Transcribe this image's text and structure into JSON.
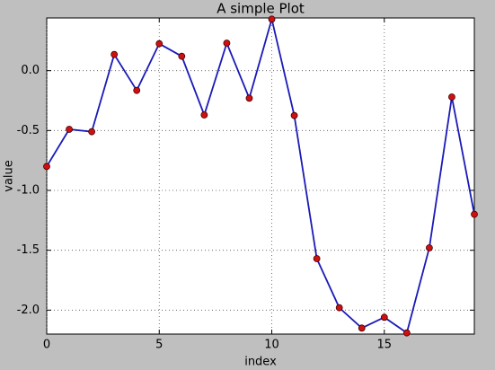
{
  "chart_data": {
    "type": "line",
    "title": "A simple Plot",
    "x_label": "index",
    "y_label": "value",
    "x": [
      0,
      1,
      2,
      3,
      4,
      5,
      6,
      7,
      8,
      9,
      10,
      11,
      12,
      13,
      14,
      15,
      16,
      17,
      18,
      19
    ],
    "series": [
      {
        "color": "#1a1ab8",
        "marker_color": "#d01010",
        "values": [
          -0.8,
          -0.49,
          -0.51,
          0.135,
          -0.165,
          0.225,
          0.12,
          -0.37,
          0.23,
          -0.23,
          0.43,
          -0.375,
          -1.57,
          -1.98,
          -2.15,
          -2.06,
          -2.19,
          -1.48,
          -0.22,
          -1.2
        ]
      }
    ],
    "xlim": [
      0,
      19
    ],
    "xticks": [
      0,
      5,
      10,
      15
    ],
    "ylim": [
      -2.2,
      0.44
    ],
    "yticks": [
      {
        "value": -2,
        "label": "-2.0"
      },
      -1.5,
      {
        "value": -1,
        "label": "-1.0"
      },
      -0.5,
      {
        "value": 0,
        "label": "0.0"
      }
    ],
    "grid": true
  }
}
